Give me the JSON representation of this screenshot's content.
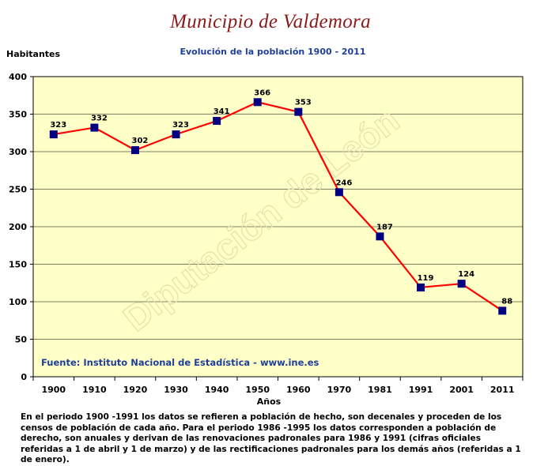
{
  "title": "Municipio de Valdemora",
  "subtitle": "Evolución de la población 1900 - 2011",
  "source": "Fuente: Instituto Nacional de Estadística - www.ine.es",
  "watermark": "Diputación de León",
  "note": "En el periodo 1900 -1991 los datos se refieren a población de hecho, son decenales y proceden de los censos de población de cada año. Para el periodo 1986 -1995 los datos corresponden a población de derecho, son anuales y derivan de las renovaciones padronales para 1986 y 1991 (cifras oficiales referidas a 1 de abril y 1 de marzo) y de las rectificaciones padronales para los demás años (referidas a 1 de enero).",
  "colors": {
    "plot_background": "#ffffc8",
    "line": "#ff0000",
    "marker": "#000080",
    "title": "#8b1a1a",
    "subtitle": "#1f3f9a",
    "source": "#1f3f9a"
  },
  "chart_data": {
    "type": "line",
    "title": "Evolución de la población 1900 - 2011",
    "xlabel": "Años",
    "ylabel": "Habitantes",
    "categories": [
      "1900",
      "1910",
      "1920",
      "1930",
      "1940",
      "1950",
      "1960",
      "1970",
      "1981",
      "1991",
      "2001",
      "2011"
    ],
    "series": [
      {
        "values": [
          323,
          332,
          302,
          323,
          341,
          366,
          353,
          246,
          187,
          119,
          124,
          88
        ]
      }
    ],
    "ylim": [
      0,
      400
    ],
    "yticks": [
      0,
      50,
      100,
      150,
      200,
      250,
      300,
      350,
      400
    ],
    "grid": true,
    "legend": "none"
  }
}
